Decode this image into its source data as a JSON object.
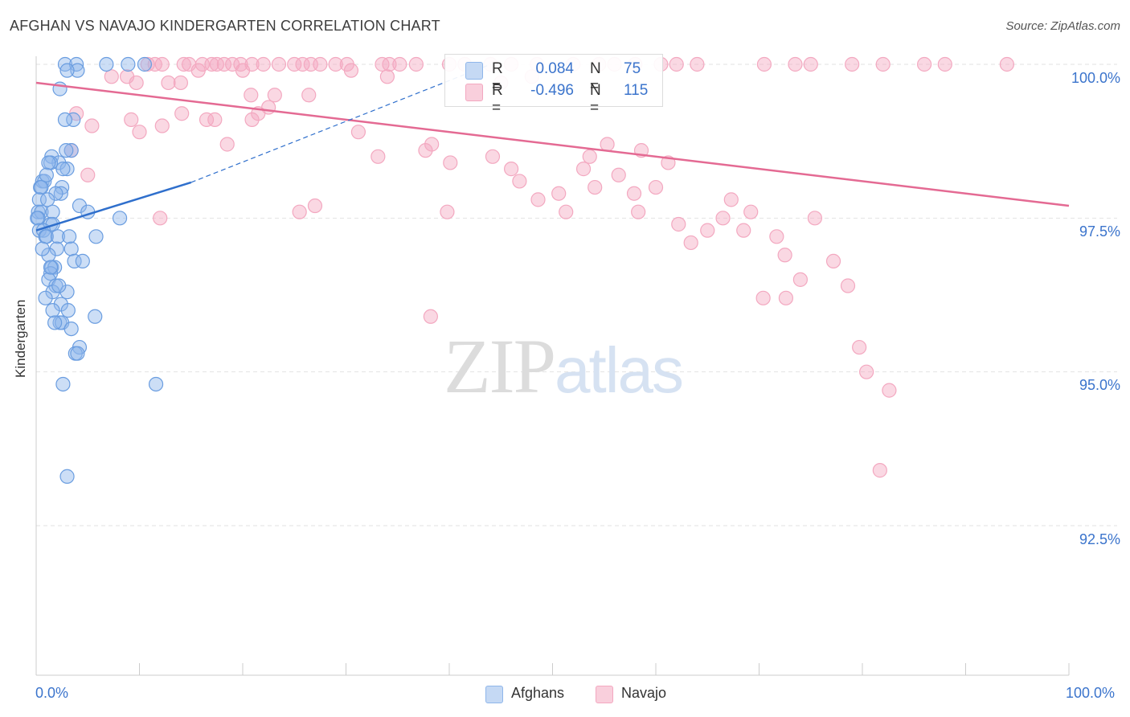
{
  "title": "AFGHAN VS NAVAJO KINDERGARTEN CORRELATION CHART",
  "source": "Source: ZipAtlas.com",
  "watermark": {
    "zip": "ZIP",
    "atlas": "atlas"
  },
  "colors": {
    "blue": "#8fb6ea",
    "blue_line": "#2f6fcc",
    "pink": "#f3a8c0",
    "pink_line": "#e46a93",
    "axis_text": "#3b74cc"
  },
  "legend": {
    "rows": [
      {
        "r_label": "R =",
        "r_value": "0.084",
        "n_label": "N =",
        "n_value": "75"
      },
      {
        "r_label": "R =",
        "r_value": "-0.496",
        "n_label": "N =",
        "n_value": "115"
      }
    ]
  },
  "bottom_legend": {
    "series1": "Afghans",
    "series2": "Navajo"
  },
  "chart_data": {
    "type": "scatter",
    "title": "AFGHAN VS NAVAJO KINDERGARTEN CORRELATION CHART",
    "xlabel": "",
    "ylabel": "Kindergarten",
    "xlim": [
      0,
      100
    ],
    "ylim": [
      90.2,
      100.4
    ],
    "x_tick_labels": [
      "0.0%",
      "100.0%"
    ],
    "y_ticks": [
      92.5,
      95.0,
      97.5,
      100.0
    ],
    "y_tick_labels": [
      "92.5%",
      "95.0%",
      "97.5%",
      "100.0%"
    ],
    "series": [
      {
        "name": "Afghans",
        "r": 0.084,
        "n": 75,
        "trend": {
          "x": [
            0,
            15
          ],
          "y": [
            97.3,
            98.08
          ]
        },
        "trend_ext": {
          "x": [
            15,
            44
          ],
          "y": [
            98.08,
            100.0
          ]
        },
        "points": [
          [
            2.8,
            100
          ],
          [
            3.9,
            100
          ],
          [
            6.8,
            100
          ],
          [
            8.9,
            100
          ],
          [
            10.5,
            100
          ],
          [
            4.0,
            99.9
          ],
          [
            3.0,
            99.9
          ],
          [
            2.3,
            99.6
          ],
          [
            3.6,
            99.1
          ],
          [
            2.8,
            99.1
          ],
          [
            3.4,
            98.6
          ],
          [
            2.9,
            98.6
          ],
          [
            1.5,
            98.5
          ],
          [
            2.2,
            98.4
          ],
          [
            1.4,
            98.4
          ],
          [
            1.2,
            98.4
          ],
          [
            3.0,
            98.3
          ],
          [
            2.6,
            98.3
          ],
          [
            0.6,
            98.1
          ],
          [
            0.8,
            98.1
          ],
          [
            0.4,
            98.0
          ],
          [
            0.5,
            98.0
          ],
          [
            2.5,
            98.0
          ],
          [
            2.4,
            97.9
          ],
          [
            1.9,
            97.9
          ],
          [
            0.3,
            97.8
          ],
          [
            1.1,
            97.8
          ],
          [
            4.2,
            97.7
          ],
          [
            5.0,
            97.6
          ],
          [
            0.2,
            97.6
          ],
          [
            0.5,
            97.6
          ],
          [
            1.6,
            97.6
          ],
          [
            0.2,
            97.5
          ],
          [
            0.1,
            97.5
          ],
          [
            1.4,
            97.4
          ],
          [
            1.6,
            97.4
          ],
          [
            8.1,
            97.5
          ],
          [
            0.3,
            97.3
          ],
          [
            0.7,
            97.3
          ],
          [
            0.9,
            97.2
          ],
          [
            1.0,
            97.2
          ],
          [
            2.1,
            97.2
          ],
          [
            3.2,
            97.2
          ],
          [
            5.8,
            97.2
          ],
          [
            2.0,
            97.0
          ],
          [
            1.2,
            96.9
          ],
          [
            3.4,
            97.0
          ],
          [
            3.7,
            96.8
          ],
          [
            4.5,
            96.8
          ],
          [
            1.5,
            96.7
          ],
          [
            1.8,
            96.7
          ],
          [
            1.4,
            96.6
          ],
          [
            1.2,
            96.5
          ],
          [
            1.9,
            96.4
          ],
          [
            1.6,
            96.3
          ],
          [
            3.0,
            96.3
          ],
          [
            0.9,
            96.2
          ],
          [
            2.4,
            96.1
          ],
          [
            3.1,
            96.0
          ],
          [
            1.6,
            96.0
          ],
          [
            5.7,
            95.9
          ],
          [
            2.3,
            95.8
          ],
          [
            2.5,
            95.8
          ],
          [
            1.8,
            95.8
          ],
          [
            3.4,
            95.7
          ],
          [
            4.2,
            95.4
          ],
          [
            3.8,
            95.3
          ],
          [
            4.0,
            95.3
          ],
          [
            2.6,
            94.8
          ],
          [
            11.6,
            94.8
          ],
          [
            3.0,
            93.3
          ],
          [
            1.4,
            96.7
          ],
          [
            2.2,
            96.4
          ],
          [
            0.6,
            97.0
          ],
          [
            1.0,
            98.2
          ]
        ]
      },
      {
        "name": "Navajo",
        "r": -0.496,
        "n": 115,
        "trend": {
          "x": [
            0,
            100
          ],
          "y": [
            99.7,
            97.7
          ]
        },
        "points": [
          [
            10.8,
            100
          ],
          [
            11.5,
            100
          ],
          [
            12.2,
            100
          ],
          [
            14.3,
            100
          ],
          [
            14.8,
            100
          ],
          [
            16.1,
            100
          ],
          [
            17.0,
            100
          ],
          [
            17.5,
            100
          ],
          [
            18.2,
            100
          ],
          [
            19.0,
            100
          ],
          [
            19.8,
            100
          ],
          [
            20.9,
            100
          ],
          [
            22.0,
            100
          ],
          [
            23.5,
            100
          ],
          [
            25.0,
            100
          ],
          [
            25.8,
            100
          ],
          [
            26.6,
            100
          ],
          [
            27.5,
            100
          ],
          [
            29.0,
            100
          ],
          [
            30.1,
            100
          ],
          [
            33.5,
            100
          ],
          [
            34.2,
            100
          ],
          [
            35.2,
            100
          ],
          [
            36.8,
            100
          ],
          [
            40.0,
            100
          ],
          [
            41.5,
            100
          ],
          [
            44.0,
            100
          ],
          [
            46.0,
            100
          ],
          [
            48.5,
            100
          ],
          [
            52.0,
            100
          ],
          [
            54.5,
            100
          ],
          [
            56.0,
            100
          ],
          [
            58.0,
            100
          ],
          [
            60.5,
            100
          ],
          [
            62.0,
            100
          ],
          [
            64.0,
            100
          ],
          [
            70.5,
            100
          ],
          [
            73.5,
            100
          ],
          [
            75.0,
            100
          ],
          [
            79.0,
            100
          ],
          [
            82.0,
            100
          ],
          [
            86.0,
            100
          ],
          [
            88.0,
            100
          ],
          [
            94.0,
            100
          ],
          [
            15.7,
            99.9
          ],
          [
            20.0,
            99.9
          ],
          [
            30.5,
            99.9
          ],
          [
            34.0,
            99.8
          ],
          [
            8.8,
            99.8
          ],
          [
            9.7,
            99.7
          ],
          [
            45.0,
            99.7
          ],
          [
            48.0,
            99.8
          ],
          [
            7.3,
            99.8
          ],
          [
            12.8,
            99.7
          ],
          [
            14.0,
            99.7
          ],
          [
            20.8,
            99.5
          ],
          [
            23.1,
            99.5
          ],
          [
            26.4,
            99.5
          ],
          [
            22.5,
            99.3
          ],
          [
            14.1,
            99.2
          ],
          [
            21.5,
            99.2
          ],
          [
            16.5,
            99.1
          ],
          [
            17.3,
            99.1
          ],
          [
            9.2,
            99.1
          ],
          [
            20.9,
            99.1
          ],
          [
            12.2,
            99.0
          ],
          [
            5.4,
            99.0
          ],
          [
            3.9,
            99.2
          ],
          [
            10.0,
            98.9
          ],
          [
            18.5,
            98.7
          ],
          [
            33.1,
            98.5
          ],
          [
            31.2,
            98.9
          ],
          [
            37.7,
            98.6
          ],
          [
            38.3,
            98.7
          ],
          [
            40.1,
            98.4
          ],
          [
            44.2,
            98.5
          ],
          [
            46.0,
            98.3
          ],
          [
            46.8,
            98.1
          ],
          [
            48.6,
            97.8
          ],
          [
            50.6,
            97.9
          ],
          [
            51.3,
            97.6
          ],
          [
            53.0,
            98.3
          ],
          [
            53.6,
            98.5
          ],
          [
            54.1,
            98.0
          ],
          [
            55.3,
            98.7
          ],
          [
            56.4,
            98.2
          ],
          [
            57.9,
            97.9
          ],
          [
            58.3,
            97.6
          ],
          [
            58.6,
            98.6
          ],
          [
            60.0,
            98.0
          ],
          [
            61.2,
            98.4
          ],
          [
            62.2,
            97.4
          ],
          [
            63.4,
            97.1
          ],
          [
            65.0,
            97.3
          ],
          [
            66.5,
            97.5
          ],
          [
            67.3,
            97.8
          ],
          [
            68.5,
            97.3
          ],
          [
            69.2,
            97.6
          ],
          [
            70.4,
            96.2
          ],
          [
            71.7,
            97.2
          ],
          [
            72.5,
            96.9
          ],
          [
            74.0,
            96.5
          ],
          [
            75.4,
            97.5
          ],
          [
            77.2,
            96.8
          ],
          [
            78.6,
            96.4
          ],
          [
            79.7,
            95.4
          ],
          [
            80.4,
            95.0
          ],
          [
            82.6,
            94.7
          ],
          [
            81.7,
            93.4
          ],
          [
            38.2,
            95.9
          ],
          [
            72.6,
            96.2
          ],
          [
            25.5,
            97.6
          ],
          [
            39.8,
            97.6
          ],
          [
            27.0,
            97.7
          ],
          [
            12.0,
            97.5
          ],
          [
            5.0,
            98.2
          ],
          [
            3.4,
            98.6
          ]
        ]
      }
    ]
  }
}
